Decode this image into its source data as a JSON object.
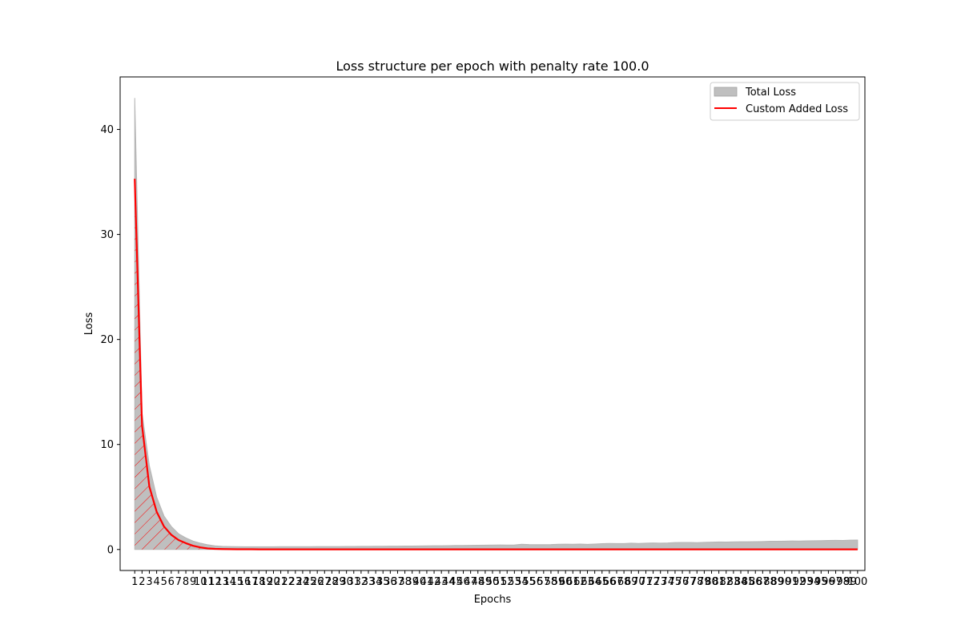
{
  "chart_data": {
    "type": "area",
    "title": "Loss structure per epoch with penalty rate 100.0",
    "xlabel": "Epochs",
    "ylabel": "Loss",
    "ylim": [
      -2,
      45
    ],
    "xlim": [
      -1,
      101
    ],
    "yticks": [
      0,
      10,
      20,
      30,
      40
    ],
    "categories": [
      "1",
      "2",
      "3",
      "4",
      "5",
      "6",
      "7",
      "8",
      "9",
      "10",
      "11",
      "12",
      "13",
      "14",
      "15",
      "16",
      "17",
      "18",
      "19",
      "20",
      "21",
      "22",
      "23",
      "24",
      "25",
      "26",
      "27",
      "28",
      "29",
      "30",
      "31",
      "32",
      "33",
      "34",
      "35",
      "36",
      "37",
      "38",
      "39",
      "40",
      "41",
      "42",
      "43",
      "44",
      "45",
      "46",
      "47",
      "48",
      "49",
      "50",
      "51",
      "52",
      "53",
      "54",
      "55",
      "56",
      "57",
      "58",
      "59",
      "60",
      "61",
      "62",
      "63",
      "64",
      "65",
      "66",
      "67",
      "68",
      "69",
      "70",
      "71",
      "72",
      "73",
      "74",
      "75",
      "76",
      "77",
      "78",
      "79",
      "80",
      "81",
      "82",
      "83",
      "84",
      "85",
      "86",
      "87",
      "88",
      "89",
      "90",
      "91",
      "92",
      "93",
      "94",
      "95",
      "96",
      "97",
      "98",
      "99",
      "100"
    ],
    "series": [
      {
        "name": "Total Loss",
        "kind": "fill",
        "color": "#bfbfbf",
        "values": [
          43.0,
          13.0,
          8.0,
          5.0,
          3.2,
          2.2,
          1.5,
          1.1,
          0.8,
          0.6,
          0.45,
          0.35,
          0.3,
          0.28,
          0.27,
          0.26,
          0.26,
          0.26,
          0.26,
          0.26,
          0.27,
          0.27,
          0.27,
          0.27,
          0.27,
          0.28,
          0.28,
          0.28,
          0.28,
          0.29,
          0.29,
          0.3,
          0.3,
          0.31,
          0.31,
          0.32,
          0.32,
          0.33,
          0.33,
          0.34,
          0.35,
          0.36,
          0.36,
          0.37,
          0.38,
          0.38,
          0.39,
          0.4,
          0.41,
          0.42,
          0.43,
          0.42,
          0.43,
          0.5,
          0.47,
          0.46,
          0.46,
          0.47,
          0.5,
          0.51,
          0.5,
          0.52,
          0.49,
          0.52,
          0.56,
          0.58,
          0.57,
          0.57,
          0.6,
          0.58,
          0.6,
          0.62,
          0.6,
          0.62,
          0.66,
          0.67,
          0.67,
          0.65,
          0.68,
          0.7,
          0.72,
          0.71,
          0.73,
          0.74,
          0.74,
          0.75,
          0.76,
          0.78,
          0.78,
          0.79,
          0.81,
          0.8,
          0.82,
          0.83,
          0.84,
          0.86,
          0.87,
          0.86,
          0.89,
          0.9
        ]
      },
      {
        "name": "Custom Added Loss",
        "kind": "line",
        "color": "#ff0000",
        "hatch": true,
        "values": [
          35.3,
          11.8,
          6.0,
          3.6,
          2.2,
          1.4,
          0.9,
          0.6,
          0.35,
          0.2,
          0.1,
          0.06,
          0.04,
          0.03,
          0.02,
          0.02,
          0.02,
          0.01,
          0.01,
          0.01,
          0.01,
          0.01,
          0.01,
          0.01,
          0.01,
          0.01,
          0.01,
          0.01,
          0.01,
          0.01,
          0.01,
          0.01,
          0.01,
          0.01,
          0.01,
          0.01,
          0.01,
          0.01,
          0.01,
          0.01,
          0.01,
          0.01,
          0.01,
          0.01,
          0.01,
          0.01,
          0.01,
          0.01,
          0.01,
          0.01,
          0.01,
          0.01,
          0.01,
          0.01,
          0.01,
          0.01,
          0.01,
          0.01,
          0.01,
          0.01,
          0.01,
          0.01,
          0.01,
          0.01,
          0.01,
          0.01,
          0.01,
          0.01,
          0.01,
          0.01,
          0.01,
          0.01,
          0.01,
          0.01,
          0.01,
          0.01,
          0.01,
          0.01,
          0.01,
          0.01,
          0.01,
          0.01,
          0.01,
          0.01,
          0.01,
          0.01,
          0.01,
          0.01,
          0.01,
          0.01,
          0.01,
          0.01,
          0.01,
          0.01,
          0.01,
          0.01,
          0.01,
          0.01,
          0.01,
          0.01
        ]
      }
    ],
    "legend": {
      "placement": "top-right",
      "entries": [
        {
          "label": "Total Loss",
          "swatch": "fill",
          "color": "#bfbfbf"
        },
        {
          "label": "Custom Added Loss",
          "swatch": "line",
          "color": "#ff0000"
        }
      ]
    },
    "grid": false
  }
}
